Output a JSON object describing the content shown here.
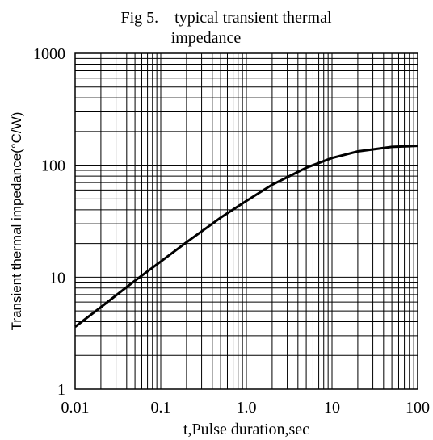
{
  "chart_data": {
    "type": "line",
    "title_lines": [
      "Fig 5. – typical transient thermal",
      "impedance"
    ],
    "xlabel": "t,Pulse duration,sec",
    "ylabel": "Transient thermal impedance(°C/W)",
    "x_scale": "log",
    "y_scale": "log",
    "xlim": [
      0.01,
      100
    ],
    "ylim": [
      1,
      1000
    ],
    "grid": true,
    "x_tick_labels": [
      "0.01",
      "0.1",
      "1.0",
      "10",
      "100"
    ],
    "y_tick_labels": [
      "1",
      "10",
      "100",
      "1000"
    ],
    "series": [
      {
        "x": [
          0.01,
          0.02,
          0.05,
          0.1,
          0.2,
          0.5,
          1,
          2,
          5,
          10,
          20,
          50,
          100
        ],
        "values": [
          3.6,
          5.4,
          9.3,
          13.8,
          20.5,
          34,
          48,
          67,
          95,
          116,
          133,
          146,
          149
        ]
      }
    ],
    "notes": {
      "bold_gridlines_y": [
        9,
        100
      ]
    }
  }
}
